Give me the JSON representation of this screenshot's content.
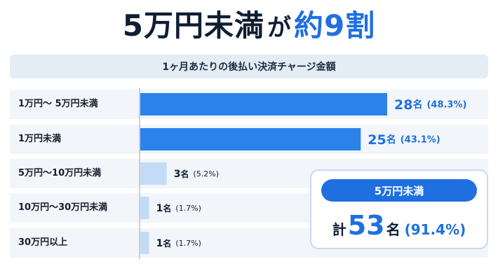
{
  "headline": {
    "main": "5万円未満",
    "joint": "が",
    "accent": "約9割"
  },
  "chart_data": {
    "type": "bar",
    "orientation": "horizontal",
    "title": "1ヶ月あたりの後払い決済チャージ金額",
    "categories": [
      "1万円〜 5万円未満",
      "1万円未満",
      "5万円〜10万円未満",
      "10万円〜30万円未満",
      "30万円以上"
    ],
    "values": [
      28,
      25,
      3,
      1,
      1
    ],
    "value_labels": [
      "28名",
      "25名",
      "3名",
      "1名",
      "1名"
    ],
    "percent_labels": [
      "(48.3%)",
      "(43.1%)",
      "(5.2%)",
      "(1.7%)",
      "(1.7%)"
    ],
    "highlight": [
      true,
      true,
      false,
      false,
      false
    ],
    "xlim": [
      0,
      28
    ],
    "grid": false
  },
  "summary": {
    "pill_label": "5万円未満",
    "prefix": "計",
    "count": "53",
    "unit": "名",
    "percent": "(91.4%)"
  },
  "colors": {
    "accent": "#1f6fe0",
    "bar_highlight": "#2b83ea",
    "bar_muted": "#c2dcf5",
    "text_dark": "#0f1e33"
  }
}
